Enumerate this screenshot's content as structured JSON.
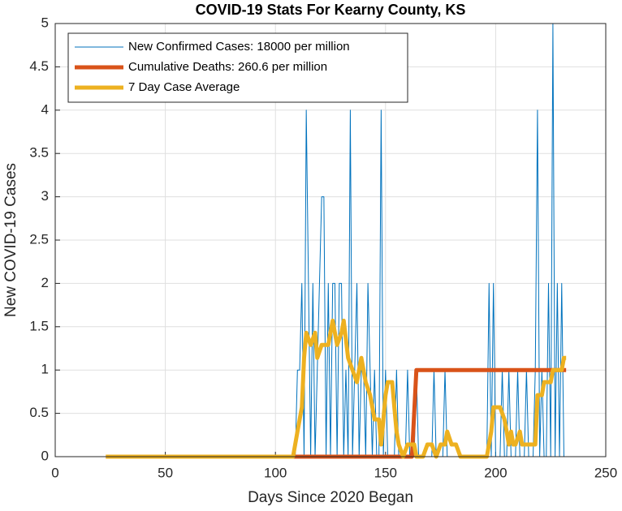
{
  "chart_data": {
    "type": "line",
    "title": "COVID-19 Stats For Kearny County, KS",
    "xlabel": "Days Since 2020 Began",
    "ylabel": "New COVID-19 Cases",
    "xlim": [
      0,
      250
    ],
    "xticks": [
      0,
      50,
      100,
      150,
      200,
      250
    ],
    "ylim": [
      0,
      5
    ],
    "yticks": [
      0,
      0.5,
      1,
      1.5,
      2,
      2.5,
      3,
      3.5,
      4,
      4.5,
      5
    ],
    "grid": true,
    "legend": "upper-left",
    "series": [
      {
        "name": "New Confirmed Cases: 18000 per million",
        "color": "#0072bd",
        "width": 1,
        "x": [
          23,
          109,
          110,
          111,
          112,
          113,
          114,
          115,
          116,
          117,
          118,
          119,
          120,
          121,
          122,
          123,
          124,
          125,
          126,
          127,
          128,
          129,
          130,
          131,
          132,
          133,
          134,
          135,
          136,
          137,
          138,
          139,
          140,
          141,
          142,
          143,
          144,
          145,
          146,
          147,
          148,
          149,
          150,
          151,
          152,
          153,
          154,
          155,
          156,
          157,
          158,
          159,
          160,
          161,
          162,
          163,
          164,
          165,
          166,
          167,
          168,
          169,
          170,
          171,
          172,
          173,
          174,
          175,
          176,
          177,
          178,
          179,
          180,
          181,
          182,
          183,
          184,
          185,
          186,
          187,
          188,
          189,
          190,
          191,
          192,
          193,
          194,
          195,
          196,
          197,
          198,
          199,
          200,
          201,
          202,
          203,
          204,
          205,
          206,
          207,
          208,
          209,
          210,
          211,
          212,
          213,
          214,
          215,
          216,
          217,
          218,
          219,
          220,
          221,
          222,
          223,
          224,
          225,
          226,
          227,
          228,
          229,
          230,
          231,
          232
        ],
        "values": [
          0,
          0,
          1,
          1,
          2,
          0,
          4,
          2,
          0,
          2,
          0,
          1,
          2,
          3,
          3,
          0,
          2,
          0,
          2,
          2,
          0,
          2,
          2,
          0,
          1,
          0,
          4,
          0,
          1,
          2,
          0,
          1,
          1,
          0,
          2,
          1,
          0,
          1,
          0,
          0,
          4,
          0,
          1,
          0,
          0,
          0,
          0,
          1,
          0,
          0,
          0,
          0,
          1,
          0,
          0,
          0,
          1,
          0,
          0,
          0,
          0,
          0,
          0,
          0,
          1,
          0,
          0,
          0,
          0,
          1,
          0,
          0,
          0,
          0,
          0,
          0,
          0,
          0,
          0,
          0,
          0,
          0,
          0,
          0,
          0,
          0,
          0,
          0,
          0,
          2,
          0,
          2,
          0,
          0,
          0,
          1,
          0,
          0,
          1,
          0,
          0,
          0,
          1,
          0,
          0,
          0,
          1,
          0,
          0,
          0,
          1,
          4,
          0,
          1,
          0,
          0,
          2,
          0,
          5,
          0,
          2,
          0,
          2,
          0,
          0
        ]
      },
      {
        "name": "Cumulative Deaths: 260.6 per million",
        "color": "#d95319",
        "width": 5,
        "x": [
          23,
          162,
          164,
          232
        ],
        "values": [
          0,
          0,
          1,
          1
        ]
      },
      {
        "name": "7 Day Case Average",
        "color": "#edb120",
        "width": 5,
        "x": [
          23,
          108,
          110,
          112,
          113,
          114,
          116,
          118,
          119,
          121,
          124,
          126,
          128,
          130,
          131,
          133,
          135,
          137,
          139,
          141,
          143,
          144,
          145,
          147,
          148,
          150,
          151,
          153,
          154,
          155,
          156,
          158,
          160,
          163,
          164,
          167,
          169,
          171,
          173,
          175,
          177,
          178,
          180,
          182,
          184,
          196,
          198,
          199,
          202,
          204,
          205,
          206,
          207,
          208,
          209,
          211,
          212,
          218,
          219,
          221,
          222,
          225,
          226,
          228,
          230,
          231,
          232
        ],
        "values": [
          0,
          0,
          0.29,
          0.57,
          1.14,
          1.43,
          1.29,
          1.43,
          1.14,
          1.29,
          1.29,
          1.57,
          1.29,
          1.43,
          1.57,
          1.14,
          1,
          0.86,
          1.14,
          0.86,
          0.71,
          0.57,
          0.43,
          0.43,
          0.14,
          0.71,
          0.86,
          0.86,
          0.57,
          0.29,
          0.14,
          0,
          0.14,
          0.14,
          0,
          0,
          0.14,
          0.14,
          0,
          0.14,
          0.14,
          0.29,
          0.14,
          0.14,
          0,
          0,
          0.29,
          0.57,
          0.57,
          0.43,
          0.29,
          0.14,
          0.29,
          0.14,
          0.14,
          0.29,
          0.14,
          0.14,
          0.71,
          0.71,
          0.86,
          0.86,
          1,
          1,
          1,
          1.14,
          1.14
        ]
      }
    ]
  }
}
